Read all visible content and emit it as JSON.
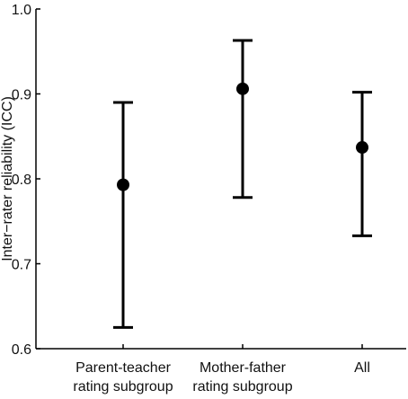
{
  "chart_data": {
    "type": "errorbar",
    "ylabel": "Inter−rater reliability (ICC)",
    "ylim": [
      0.6,
      1.0
    ],
    "yticks": [
      "0.6",
      "0.7",
      "0.8",
      "0.9",
      "1.0"
    ],
    "categories": [
      [
        "Parent-teacher",
        "rating subgroup"
      ],
      [
        "Mother-father",
        "rating subgroup"
      ],
      [
        "All"
      ]
    ],
    "points": [
      {
        "value": 0.793,
        "lower": 0.625,
        "upper": 0.89
      },
      {
        "value": 0.906,
        "lower": 0.778,
        "upper": 0.963
      },
      {
        "value": 0.837,
        "lower": 0.733,
        "upper": 0.902
      }
    ],
    "grid": false,
    "colors": {
      "marks": "#000000",
      "axis": "#000000"
    }
  }
}
